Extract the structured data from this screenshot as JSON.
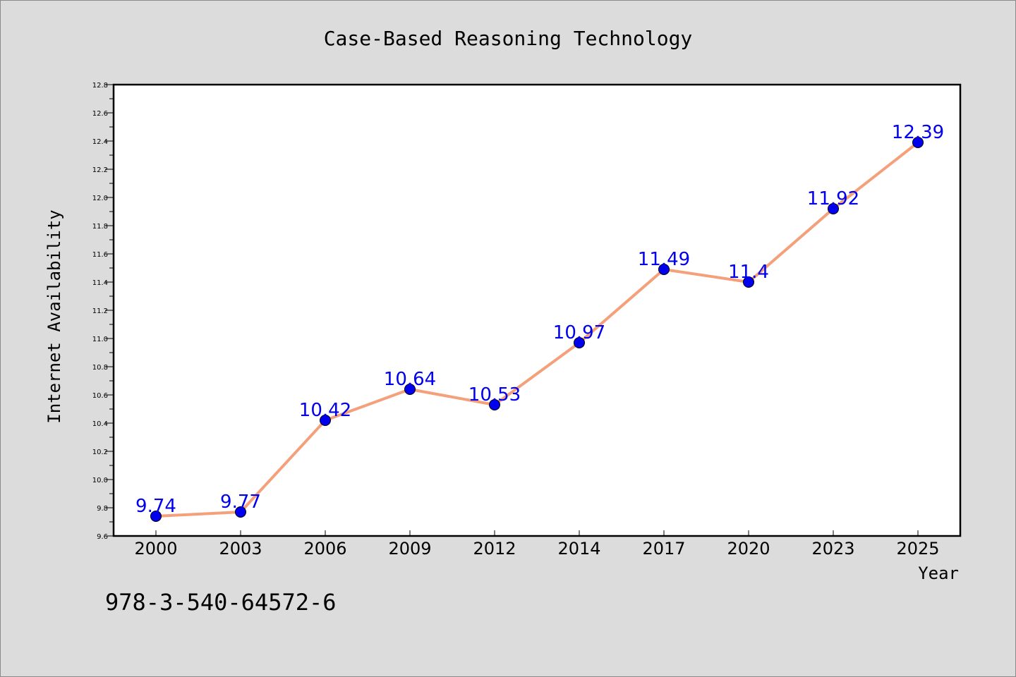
{
  "chart_data": {
    "type": "line",
    "title": "Case-Based Reasoning Technology",
    "xlabel": "Year",
    "ylabel": "Internet Availability",
    "categories": [
      "2000",
      "2003",
      "2006",
      "2009",
      "2012",
      "2014",
      "2017",
      "2020",
      "2023",
      "2025"
    ],
    "series": [
      {
        "values": [
          9.74,
          9.77,
          10.42,
          10.64,
          10.53,
          10.97,
          11.49,
          11.4,
          11.92,
          12.39
        ],
        "labels": [
          "9.74",
          "9.77",
          "10.42",
          "10.64",
          "10.53",
          "10.97",
          "11.49",
          "11.4",
          "11.92",
          "12.39"
        ],
        "line_color": "#f4a07a",
        "marker_color": "#0000ee",
        "label_color": "#0000ee"
      }
    ],
    "ylim": [
      9.6,
      12.8
    ],
    "y_major_step": 0.2,
    "y_tick_labels": [
      "9.6",
      "9.8",
      "10.0",
      "10.2",
      "10.4",
      "10.6",
      "10.8",
      "11.0",
      "11.2",
      "11.4",
      "11.6",
      "11.8",
      "12.0",
      "12.2",
      "12.4",
      "12.6",
      "12.8"
    ],
    "grid": false,
    "legend": "none",
    "background": "#dcdcdc",
    "plot_background": "#ffffff"
  },
  "footnote": "978-3-540-64572-6"
}
